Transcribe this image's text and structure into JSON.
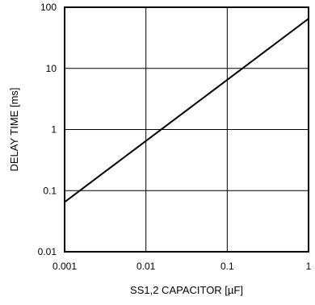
{
  "chart_data": {
    "type": "line",
    "title": "",
    "xlabel": "SS1,2 CAPACITOR [µF]",
    "ylabel": "DELAY TIME [ms]",
    "x_scale": "log",
    "y_scale": "log",
    "xlim": [
      0.001,
      1
    ],
    "ylim": [
      0.01,
      100
    ],
    "x_ticks": [
      {
        "value": 0.001,
        "label": "0.001"
      },
      {
        "value": 0.01,
        "label": "0.01"
      },
      {
        "value": 0.1,
        "label": "0.1"
      },
      {
        "value": 1,
        "label": "1"
      }
    ],
    "y_ticks": [
      {
        "value": 0.01,
        "label": "0.01"
      },
      {
        "value": 0.1,
        "label": "0.1"
      },
      {
        "value": 1,
        "label": "1"
      },
      {
        "value": 10,
        "label": "10"
      },
      {
        "value": 100,
        "label": "100"
      }
    ],
    "grid": true,
    "legend": "none",
    "line_color": "#000000",
    "series": [
      {
        "x": [
          0.001,
          0.01,
          0.1,
          1
        ],
        "y": [
          0.065,
          0.65,
          6.5,
          65
        ]
      }
    ]
  }
}
